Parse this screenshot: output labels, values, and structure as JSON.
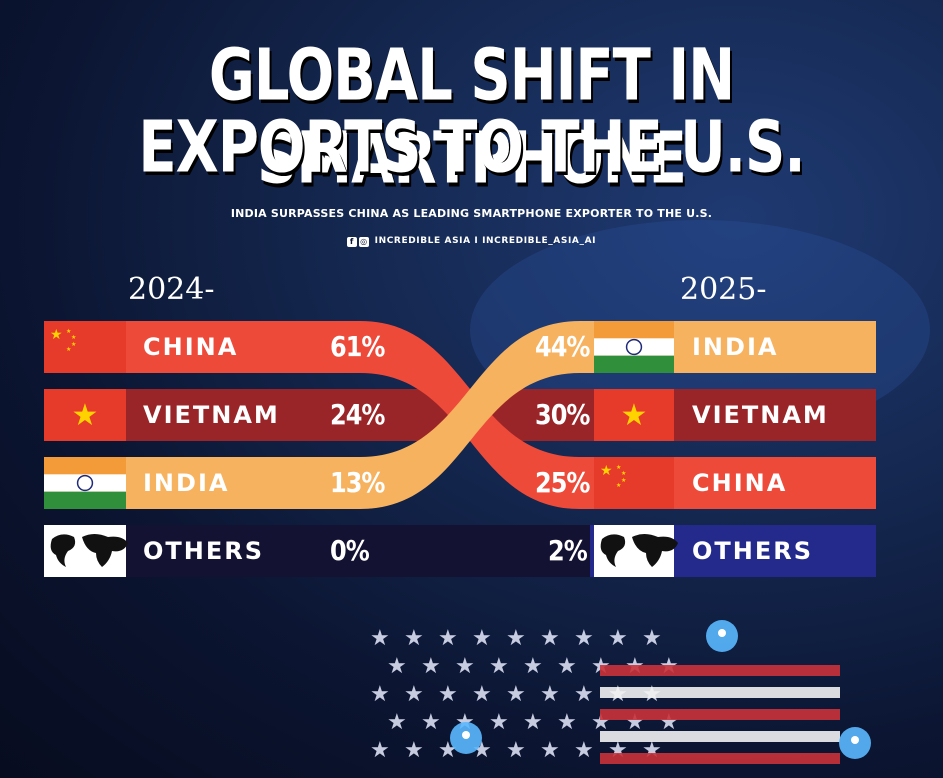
{
  "title_line1": "GLOBAL SHIFT IN SMARTPHONE",
  "title_line2": "EXPORTS TO THE U.S.",
  "subtitle": "INDIA SURPASSES CHINA AS LEADING SMARTPHONE EXPORTER TO THE U.S.",
  "social": "INCREDIBLE ASIA I INCREDIBLE_ASIA_AI",
  "icons": [
    "facebook-icon",
    "instagram-icon"
  ],
  "colors": {
    "china": "#ee4a3a",
    "vietnam": "#9a2528",
    "india": "#f6b25e",
    "others": "#232a8c"
  },
  "chart_data": {
    "type": "table",
    "left_label": "2024-",
    "right_label": "2025-",
    "left": [
      {
        "name": "CHINA",
        "value": "61%"
      },
      {
        "name": "VIETNAM",
        "value": "24%"
      },
      {
        "name": "INDIA",
        "value": "13%"
      },
      {
        "name": "OTHERS",
        "value": "0%"
      }
    ],
    "right": [
      {
        "name": "INDIA",
        "value": "44%"
      },
      {
        "name": "VIETNAM",
        "value": "30%"
      },
      {
        "name": "CHINA",
        "value": "25%"
      },
      {
        "name": "OTHERS",
        "value": "2%"
      }
    ],
    "series": [
      {
        "name": "CHINA",
        "values": [
          61,
          25
        ]
      },
      {
        "name": "VIETNAM",
        "values": [
          24,
          30
        ]
      },
      {
        "name": "INDIA",
        "values": [
          13,
          44
        ]
      },
      {
        "name": "OTHERS",
        "values": [
          0,
          2
        ]
      }
    ]
  }
}
